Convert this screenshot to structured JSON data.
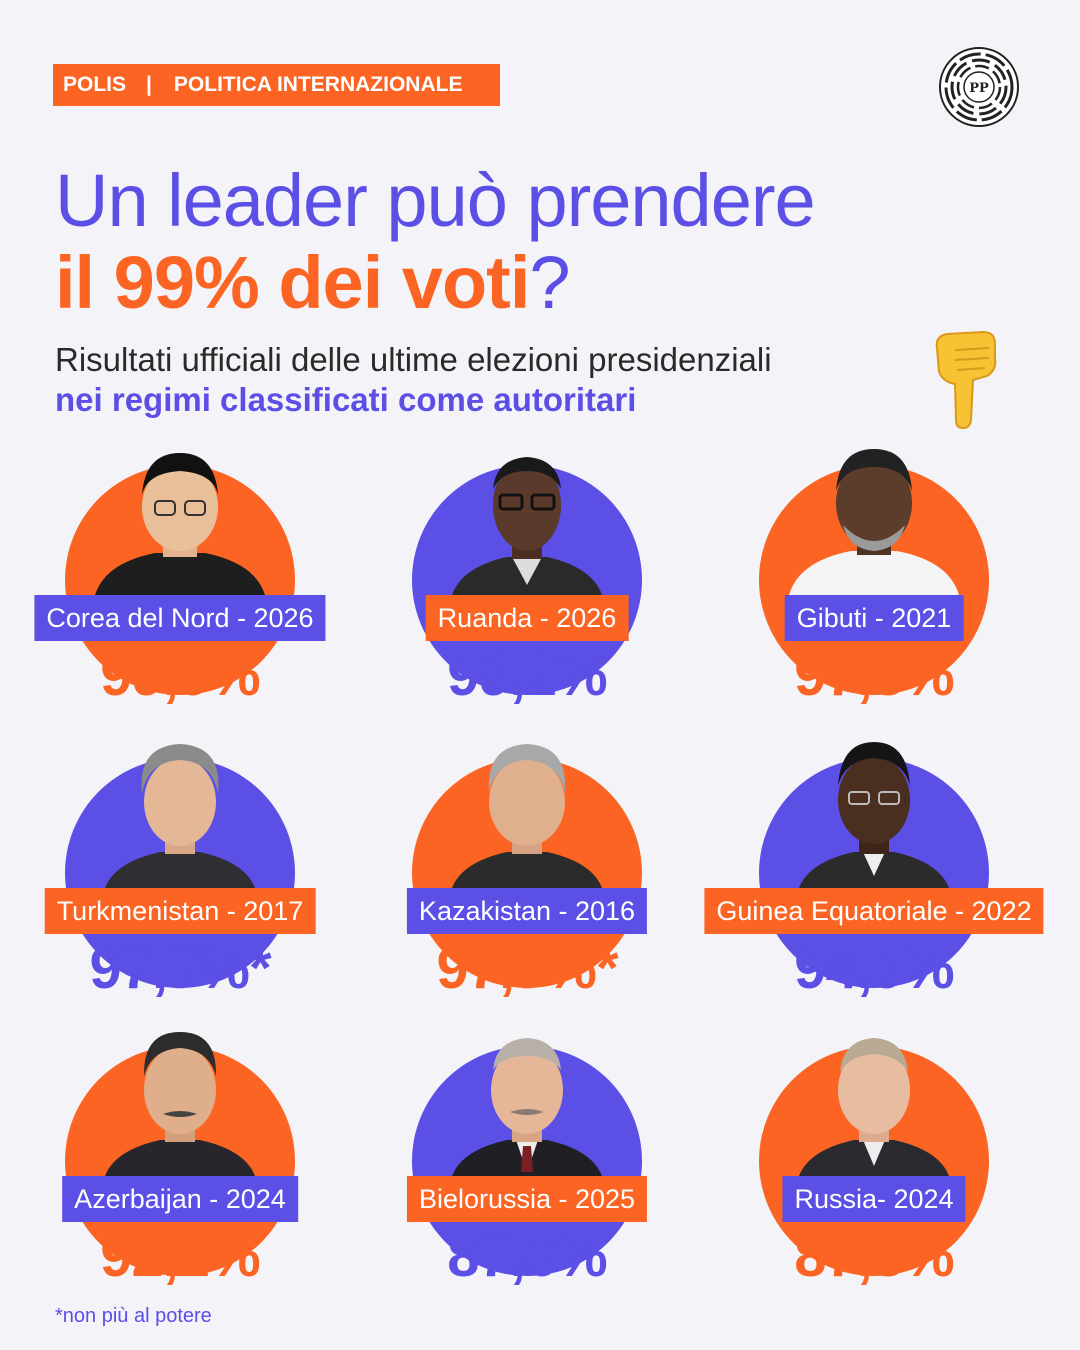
{
  "header": {
    "tag_left": "POLIS",
    "tag_sep": "|",
    "tag_right": "POLITICA INTERNAZIONALE",
    "logo_text": "PP"
  },
  "title": {
    "line1": "Un leader può prendere",
    "line2_highlight": "il 99% dei voti",
    "line2_end": "?"
  },
  "subtitle": {
    "line1": "Risultati ufficiali delle ultime elezioni presidenziali",
    "line2": "nei regimi classificati come autoritari"
  },
  "icons": {
    "hand": "pointing-down-hand-icon",
    "logo": "pp-maze-logo-icon"
  },
  "colors": {
    "orange": "#fb6423",
    "purple": "#5b4fe6",
    "background": "#f4f3f7"
  },
  "cards": [
    {
      "label": "Corea del Nord - 2026",
      "value": "99,9%"
    },
    {
      "label": "Ruanda - 2026",
      "value": "99,2%"
    },
    {
      "label": "Gibuti - 2021",
      "value": "97,8%"
    },
    {
      "label": "Turkmenistan - 2017",
      "value": "97,7%*"
    },
    {
      "label": "Kazakistan - 2016",
      "value": "97,7%*"
    },
    {
      "label": "Guinea Equatoriale - 2022",
      "value": "94,9%"
    },
    {
      "label": "Azerbaijan - 2024",
      "value": "92,2%"
    },
    {
      "label": "Bielorussia - 2025",
      "value": "87,6%"
    },
    {
      "label": "Russia- 2024",
      "value": "87,8%"
    }
  ],
  "footnote": "*non più al potere"
}
